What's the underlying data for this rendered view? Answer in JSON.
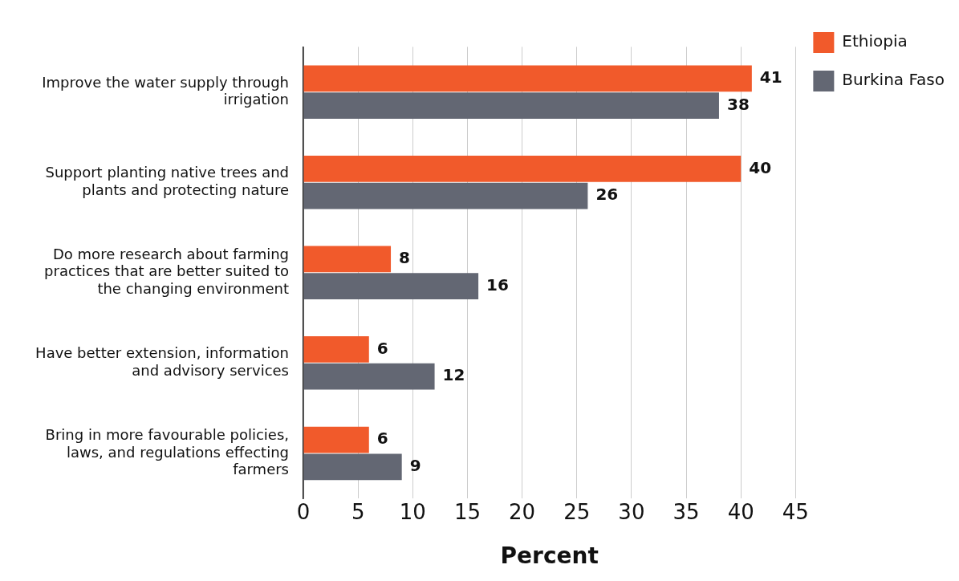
{
  "chart_data": {
    "type": "bar",
    "orientation": "horizontal",
    "xlabel": "Percent",
    "categories": [
      "Improve the water supply through irrigation",
      "Support planting native trees and plants and protecting nature",
      "Do more research about farming practices that are better suited to the changing environment",
      "Have better extension, information and advisory services",
      "Bring in more favourable policies, laws, and regulations effecting farmers"
    ],
    "series": [
      {
        "name": "Ethiopia",
        "color": "#f15a2b",
        "values": [
          41,
          40,
          8,
          6,
          6
        ]
      },
      {
        "name": "Burkina Faso",
        "color": "#636773",
        "values": [
          38,
          26,
          16,
          12,
          9
        ]
      }
    ],
    "xlim": [
      0,
      45
    ],
    "xticks": [
      0,
      5,
      10,
      15,
      20,
      25,
      30,
      35,
      40,
      45
    ],
    "grid": "x",
    "legend": "top right",
    "data_labels": true
  }
}
